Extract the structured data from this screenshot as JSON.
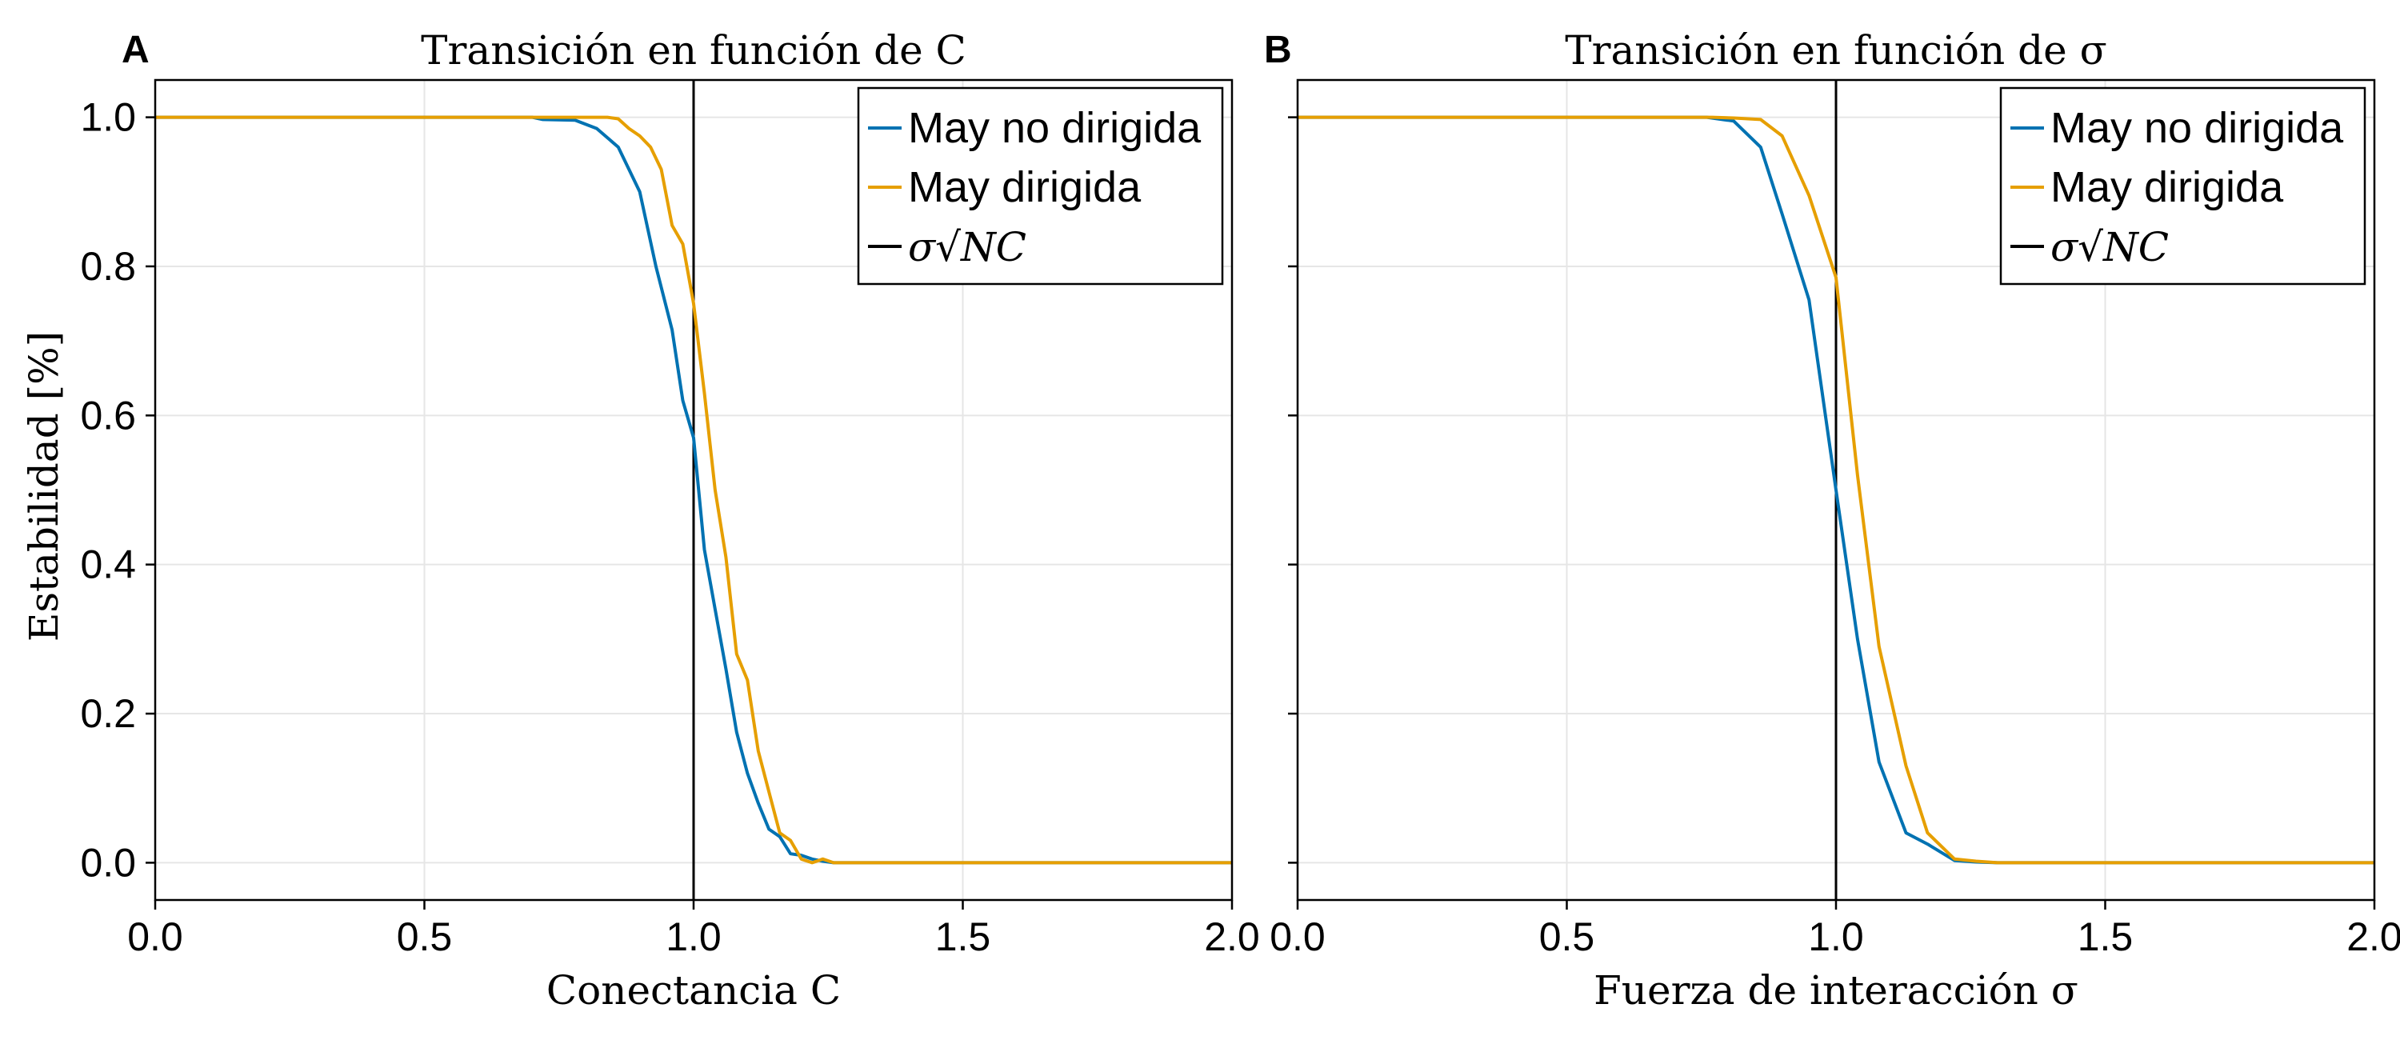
{
  "colors": {
    "series_undirected": "#0072B2",
    "series_directed": "#E69F00",
    "reference_line": "#000000",
    "grid": "#e6e6e6",
    "frame": "#000000"
  },
  "shared": {
    "ylabel": "Estabilidad [%]"
  },
  "chart_data": [
    {
      "type": "line",
      "panel_label": "A",
      "title": "Transición en función de C",
      "xlabel": "Conectancia C",
      "xlim": [
        0,
        2
      ],
      "ylim": [
        -0.05,
        1.05
      ],
      "x_ticks": [
        0,
        0.5,
        1,
        1.5,
        2
      ],
      "x_tick_labels": [
        "0.0",
        "0.5",
        "1.0",
        "1.5",
        "2.0"
      ],
      "y_ticks": [
        0,
        0.2,
        0.4,
        0.6,
        0.8,
        1
      ],
      "y_tick_labels": [
        "0.0",
        "0.2",
        "0.4",
        "0.6",
        "0.8",
        "1.0"
      ],
      "grid": true,
      "legend_position": "top-right",
      "reference_line": {
        "label": "σ√NC",
        "x": 1.0
      },
      "series": [
        {
          "name": "May no dirigida",
          "x": [
            0,
            0.7,
            0.72,
            0.78,
            0.82,
            0.86,
            0.9,
            0.93,
            0.96,
            0.98,
            1.0,
            1.02,
            1.04,
            1.06,
            1.08,
            1.1,
            1.12,
            1.14,
            1.16,
            1.18,
            1.2,
            1.22,
            1.24,
            1.26,
            2.0
          ],
          "values": [
            1.0,
            1.0,
            0.997,
            0.996,
            0.985,
            0.96,
            0.9,
            0.8,
            0.715,
            0.62,
            0.57,
            0.42,
            0.34,
            0.26,
            0.175,
            0.12,
            0.08,
            0.045,
            0.035,
            0.012,
            0.01,
            0.005,
            0.002,
            0.0,
            0.0
          ]
        },
        {
          "name": "May dirigida",
          "x": [
            0,
            0.8,
            0.82,
            0.84,
            0.86,
            0.88,
            0.9,
            0.92,
            0.94,
            0.96,
            0.98,
            1.0,
            1.02,
            1.04,
            1.06,
            1.08,
            1.1,
            1.12,
            1.14,
            1.16,
            1.18,
            1.2,
            1.22,
            1.24,
            1.26,
            2.0
          ],
          "values": [
            1.0,
            1.0,
            1.0,
            1.0,
            0.998,
            0.985,
            0.975,
            0.96,
            0.93,
            0.855,
            0.83,
            0.75,
            0.63,
            0.5,
            0.41,
            0.28,
            0.245,
            0.15,
            0.095,
            0.04,
            0.03,
            0.005,
            0.0,
            0.005,
            0.0,
            0.0
          ]
        }
      ]
    },
    {
      "type": "line",
      "panel_label": "B",
      "title": "Transición en función de σ",
      "xlabel": "Fuerza de interacción σ",
      "xlim": [
        0,
        2
      ],
      "ylim": [
        -0.05,
        1.05
      ],
      "x_ticks": [
        0,
        0.5,
        1,
        1.5,
        2
      ],
      "x_tick_labels": [
        "0.0",
        "0.5",
        "1.0",
        "1.5",
        "2.0"
      ],
      "y_ticks": [
        0,
        0.2,
        0.4,
        0.6,
        0.8,
        1
      ],
      "y_tick_labels": [
        "",
        "",
        "",
        "",
        "",
        ""
      ],
      "grid": true,
      "legend_position": "top-right",
      "reference_line": {
        "label": "σ√NC",
        "x": 1.0
      },
      "series": [
        {
          "name": "May no dirigida",
          "x": [
            0,
            0.72,
            0.76,
            0.81,
            0.86,
            0.9,
            0.95,
            1.0,
            1.04,
            1.08,
            1.13,
            1.17,
            1.22,
            1.26,
            1.3,
            2.0
          ],
          "values": [
            1.0,
            1.0,
            1.0,
            0.995,
            0.96,
            0.87,
            0.755,
            0.5,
            0.3,
            0.135,
            0.04,
            0.025,
            0.003,
            0.001,
            0.0,
            0.0
          ]
        },
        {
          "name": "May dirigida",
          "x": [
            0,
            0.77,
            0.81,
            0.86,
            0.9,
            0.95,
            1.0,
            1.04,
            1.08,
            1.13,
            1.17,
            1.22,
            1.26,
            1.3,
            2.0
          ],
          "values": [
            1.0,
            1.0,
            0.999,
            0.997,
            0.975,
            0.895,
            0.785,
            0.52,
            0.29,
            0.13,
            0.04,
            0.005,
            0.002,
            0.0,
            0.0
          ]
        }
      ]
    }
  ]
}
